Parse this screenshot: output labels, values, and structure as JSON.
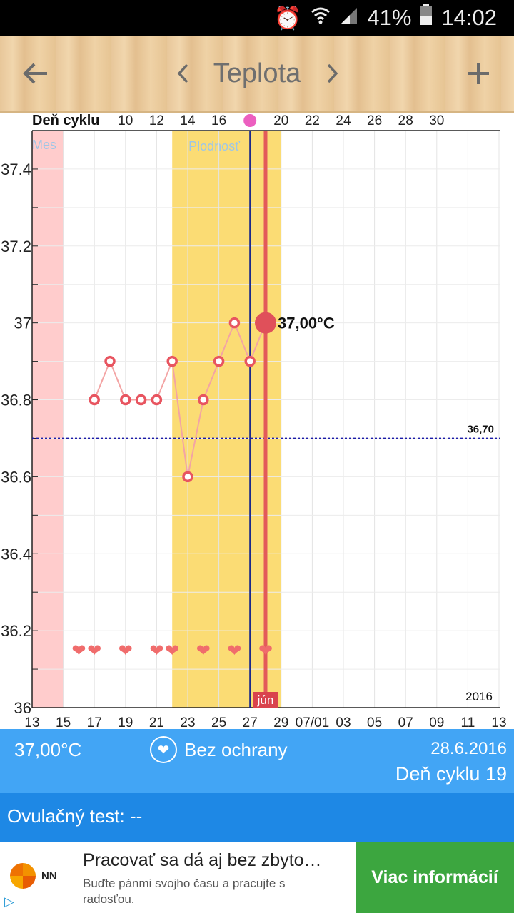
{
  "status_bar": {
    "battery": "41%",
    "time": "14:02",
    "icons": [
      "alarm-icon",
      "wifi-icon",
      "signal-icon",
      "battery-icon"
    ]
  },
  "toolbar": {
    "title": "Teplota",
    "back_icon": "back-arrow-icon",
    "prev_icon": "chevron-left-icon",
    "next_icon": "chevron-right-icon",
    "add_icon": "plus-icon"
  },
  "chart_data": {
    "type": "line",
    "top_axis_label": "Deň cyklu",
    "top_ticks": [
      "10",
      "12",
      "14",
      "16",
      "",
      "20",
      "22",
      "24",
      "26",
      "28",
      "30"
    ],
    "x_ticks": [
      "13",
      "15",
      "17",
      "19",
      "21",
      "23",
      "25",
      "27",
      "29",
      "07/01",
      "03",
      "05",
      "07",
      "09",
      "11",
      "13"
    ],
    "y_ticks": [
      "37.4",
      "37.2",
      "37",
      "36.8",
      "36.6",
      "36.4",
      "36.2",
      "36"
    ],
    "ylim": [
      36.0,
      37.5
    ],
    "year_label": "2016",
    "month_label": "jún",
    "period_label": "Mes",
    "fertile_label": "Plodnosť",
    "cover_line": {
      "value": 36.7,
      "label": "36,70"
    },
    "current": {
      "x": 28,
      "value": 37.0,
      "label": "37,00°C"
    },
    "series": [
      {
        "x": [
          17,
          18,
          19,
          20,
          21,
          22,
          23,
          24,
          25,
          26,
          27,
          28
        ],
        "values": [
          36.8,
          36.9,
          36.8,
          36.8,
          36.8,
          36.9,
          36.6,
          36.8,
          36.9,
          37.0,
          36.9,
          37.0
        ]
      }
    ],
    "intercourse_days": [
      16,
      17,
      19,
      21,
      22,
      24,
      26,
      28
    ],
    "period_range": [
      13,
      15
    ],
    "fertile_range": [
      22,
      29
    ],
    "ovulation_day": 27,
    "today": 28,
    "colors": {
      "line": "#f3a4a4",
      "point": "#e85560",
      "cover": "#1a1aa8",
      "fertile": "#fbdc74",
      "period": "#ffcccc",
      "today": "#e35a5a"
    }
  },
  "info": {
    "temperature": "37,00°C",
    "protection": "Bez ochrany",
    "date": "28.6.2016",
    "cycle_day": "Deň cyklu 19"
  },
  "ovulation": {
    "text": "Ovulačný test: --"
  },
  "ad": {
    "brand": "NN",
    "title": "Pracovať sa dá aj bez zbyto…",
    "subtitle": "Buďte pánmi svojho času a pracujte s radosťou.",
    "cta": "Viac informácií"
  }
}
